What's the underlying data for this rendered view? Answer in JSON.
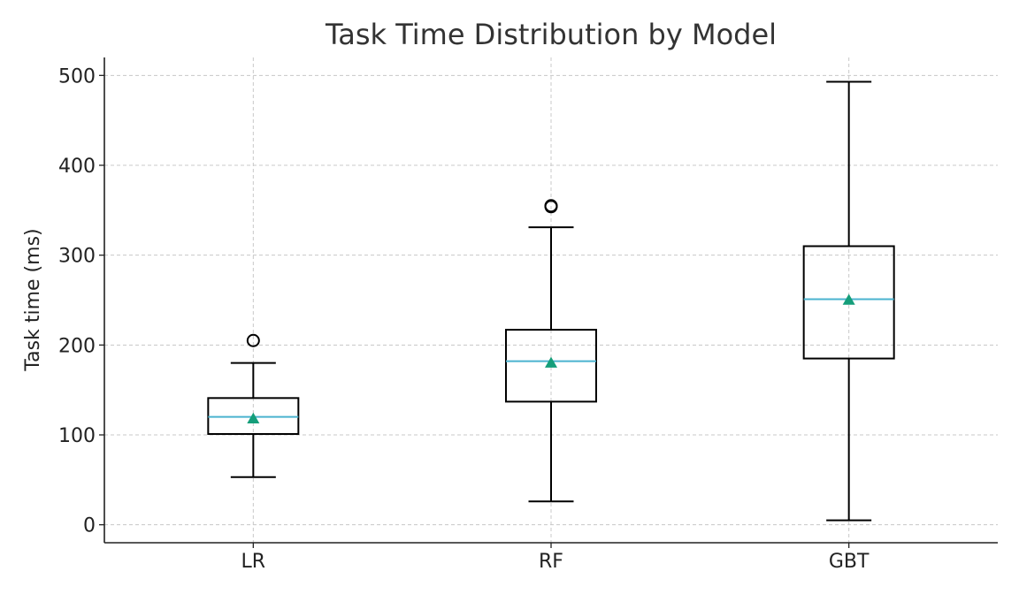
{
  "chart_data": {
    "type": "box",
    "title": "Task Time Distribution by Model",
    "xlabel": "",
    "ylabel": "Task time (ms)",
    "ylim": [
      -20,
      520
    ],
    "yticks": [
      0,
      100,
      200,
      300,
      400,
      500
    ],
    "grid": true,
    "categories": [
      "LR",
      "RF",
      "GBT"
    ],
    "boxes": [
      {
        "category": "LR",
        "whisker_low": 53,
        "q1": 101,
        "median": 120,
        "q3": 141,
        "whisker_high": 180,
        "mean": 118,
        "outliers": [
          205
        ]
      },
      {
        "category": "RF",
        "whisker_low": 26,
        "q1": 137,
        "median": 182,
        "q3": 217,
        "whisker_high": 331,
        "mean": 180,
        "outliers": [
          354,
          355
        ]
      },
      {
        "category": "GBT",
        "whisker_low": 5,
        "q1": 185,
        "median": 251,
        "q3": 310,
        "whisker_high": 493,
        "mean": 250,
        "outliers": []
      }
    ],
    "colors": {
      "median": "#4ab3cf",
      "mean": "#159e7a",
      "box": "#000000"
    }
  }
}
